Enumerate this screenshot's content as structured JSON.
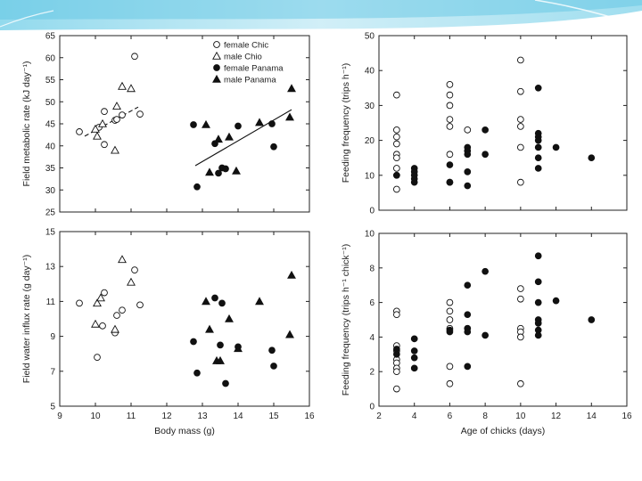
{
  "chart_data": [
    {
      "type": "scatter",
      "id": "top-left",
      "xlim": [
        9,
        16
      ],
      "ylim": [
        25,
        65
      ],
      "yticks": [
        25,
        30,
        35,
        40,
        45,
        50,
        55,
        60,
        65
      ],
      "xticks": [
        9,
        10,
        11,
        12,
        13,
        14,
        15,
        16
      ],
      "show_xticklabels": false,
      "xlabel": "",
      "ylabel": "Field metabolic rate (kJ day⁻¹)",
      "legend": {
        "position": "top-right",
        "entries": [
          {
            "label": "female Chic",
            "marker": "circle",
            "filled": false
          },
          {
            "label": "male Chio",
            "marker": "triangle",
            "filled": false
          },
          {
            "label": "female Panama",
            "marker": "circle",
            "filled": true
          },
          {
            "label": "male Panama",
            "marker": "triangle",
            "filled": true
          }
        ]
      },
      "series": [
        {
          "name": "female Chic",
          "marker": "circle",
          "filled": false,
          "points": [
            [
              9.55,
              43.2
            ],
            [
              10.1,
              44.2
            ],
            [
              10.25,
              47.8
            ],
            [
              10.25,
              40.3
            ],
            [
              10.55,
              45.8
            ],
            [
              10.6,
              46.0
            ],
            [
              10.75,
              47.0
            ],
            [
              11.1,
              60.3
            ],
            [
              11.25,
              47.2
            ]
          ]
        },
        {
          "name": "male Chio",
          "marker": "triangle",
          "filled": false,
          "points": [
            [
              10.0,
              43.8
            ],
            [
              10.05,
              42.2
            ],
            [
              10.2,
              45.0
            ],
            [
              10.55,
              39.0
            ],
            [
              10.6,
              49.0
            ],
            [
              10.75,
              53.5
            ],
            [
              11.0,
              53.0
            ]
          ]
        },
        {
          "name": "female Panama",
          "marker": "circle",
          "filled": true,
          "points": [
            [
              12.75,
              44.8
            ],
            [
              12.85,
              30.7
            ],
            [
              13.35,
              40.5
            ],
            [
              13.45,
              33.8
            ],
            [
              13.55,
              35.0
            ],
            [
              13.65,
              34.8
            ],
            [
              14.0,
              44.5
            ],
            [
              14.95,
              45.0
            ],
            [
              15.0,
              39.8
            ]
          ]
        },
        {
          "name": "male Panama",
          "marker": "triangle",
          "filled": true,
          "points": [
            [
              13.1,
              44.8
            ],
            [
              13.2,
              34.0
            ],
            [
              13.45,
              41.5
            ],
            [
              13.75,
              42.0
            ],
            [
              13.95,
              34.3
            ],
            [
              14.6,
              45.3
            ],
            [
              15.45,
              46.5
            ],
            [
              15.5,
              53.0
            ]
          ]
        }
      ],
      "fit_lines": [
        {
          "name": "Chio fit",
          "style": "dashed",
          "from": [
            9.7,
            42.2
          ],
          "to": [
            11.2,
            48.8
          ]
        },
        {
          "name": "Panama fit",
          "style": "solid",
          "from": [
            12.8,
            35.5
          ],
          "to": [
            15.5,
            48.2
          ]
        }
      ]
    },
    {
      "type": "scatter",
      "id": "bottom-left",
      "xlim": [
        9,
        16
      ],
      "ylim": [
        5,
        15
      ],
      "yticks": [
        5,
        7,
        9,
        11,
        13,
        15
      ],
      "xticks": [
        9,
        10,
        11,
        12,
        13,
        14,
        15,
        16
      ],
      "show_xticklabels": true,
      "xlabel": "Body mass (g)",
      "ylabel": "Field water influx rate (g day⁻¹)",
      "series": [
        {
          "name": "female Chic",
          "marker": "circle",
          "filled": false,
          "points": [
            [
              9.55,
              10.9
            ],
            [
              10.05,
              7.8
            ],
            [
              10.2,
              9.6
            ],
            [
              10.25,
              11.5
            ],
            [
              10.55,
              9.2
            ],
            [
              10.6,
              10.2
            ],
            [
              10.75,
              10.5
            ],
            [
              11.1,
              12.8
            ],
            [
              11.25,
              10.8
            ]
          ]
        },
        {
          "name": "male Chio",
          "marker": "triangle",
          "filled": false,
          "points": [
            [
              10.0,
              9.7
            ],
            [
              10.05,
              10.9
            ],
            [
              10.15,
              11.2
            ],
            [
              10.55,
              9.4
            ],
            [
              10.75,
              13.4
            ],
            [
              11.0,
              12.1
            ]
          ]
        },
        {
          "name": "female Panama",
          "marker": "circle",
          "filled": true,
          "points": [
            [
              12.75,
              8.7
            ],
            [
              12.85,
              6.9
            ],
            [
              13.35,
              11.2
            ],
            [
              13.5,
              8.5
            ],
            [
              13.55,
              10.9
            ],
            [
              13.65,
              6.3
            ],
            [
              14.0,
              8.4
            ],
            [
              14.95,
              8.2
            ],
            [
              15.0,
              7.3
            ]
          ]
        },
        {
          "name": "male Panama",
          "marker": "triangle",
          "filled": true,
          "points": [
            [
              13.1,
              11.0
            ],
            [
              13.2,
              9.4
            ],
            [
              13.4,
              7.6
            ],
            [
              13.5,
              7.6
            ],
            [
              13.75,
              10.0
            ],
            [
              14.0,
              8.3
            ],
            [
              14.6,
              11.0
            ],
            [
              15.45,
              9.1
            ],
            [
              15.5,
              12.5
            ]
          ]
        }
      ]
    },
    {
      "type": "scatter",
      "id": "top-right",
      "xlim": [
        2,
        16
      ],
      "ylim": [
        0,
        50
      ],
      "yticks": [
        0,
        10,
        20,
        30,
        40,
        50
      ],
      "xticks": [
        2,
        4,
        6,
        8,
        10,
        12,
        14,
        16
      ],
      "show_xticklabels": false,
      "xlabel": "",
      "ylabel": "Feeding frequency (trips h⁻¹)",
      "series": [
        {
          "name": "Chio",
          "marker": "circle",
          "filled": false,
          "points": [
            [
              3,
              33
            ],
            [
              3,
              23
            ],
            [
              3,
              21
            ],
            [
              3,
              19
            ],
            [
              3,
              16
            ],
            [
              3,
              15
            ],
            [
              3,
              12
            ],
            [
              3,
              10
            ],
            [
              3,
              6
            ],
            [
              6,
              36
            ],
            [
              6,
              33
            ],
            [
              6,
              30
            ],
            [
              6,
              26
            ],
            [
              6,
              24
            ],
            [
              6,
              16
            ],
            [
              6,
              8
            ],
            [
              7,
              23
            ],
            [
              10,
              43
            ],
            [
              10,
              34
            ],
            [
              10,
              26
            ],
            [
              10,
              24
            ],
            [
              10,
              18
            ],
            [
              10,
              8
            ]
          ]
        },
        {
          "name": "Panama",
          "marker": "circle",
          "filled": true,
          "points": [
            [
              3,
              10
            ],
            [
              4,
              12
            ],
            [
              4,
              11
            ],
            [
              4,
              10
            ],
            [
              4,
              9
            ],
            [
              4,
              8
            ],
            [
              6,
              13
            ],
            [
              6,
              8
            ],
            [
              7,
              18
            ],
            [
              7,
              17
            ],
            [
              7,
              16
            ],
            [
              7,
              11
            ],
            [
              7,
              7
            ],
            [
              8,
              23
            ],
            [
              8,
              16
            ],
            [
              11,
              35
            ],
            [
              11,
              22
            ],
            [
              11,
              21
            ],
            [
              11,
              20
            ],
            [
              11,
              18
            ],
            [
              11,
              15
            ],
            [
              11,
              12
            ],
            [
              12,
              18
            ],
            [
              14,
              15
            ]
          ]
        }
      ]
    },
    {
      "type": "scatter",
      "id": "bottom-right",
      "xlim": [
        2,
        16
      ],
      "ylim": [
        0,
        10
      ],
      "yticks": [
        0,
        2,
        4,
        6,
        8,
        10
      ],
      "xticks": [
        2,
        4,
        6,
        8,
        10,
        12,
        14,
        16
      ],
      "show_xticklabels": true,
      "xlabel": "Age of chicks (days)",
      "ylabel": "Feeding frequency (trips h⁻¹ chick⁻¹)",
      "series": [
        {
          "name": "Chio",
          "marker": "circle",
          "filled": false,
          "points": [
            [
              3,
              5.5
            ],
            [
              3,
              5.3
            ],
            [
              3,
              3.5
            ],
            [
              3,
              3.2
            ],
            [
              3,
              2.7
            ],
            [
              3,
              2.5
            ],
            [
              3,
              2.2
            ],
            [
              3,
              2.0
            ],
            [
              3,
              1.0
            ],
            [
              6,
              6.0
            ],
            [
              6,
              5.5
            ],
            [
              6,
              5.0
            ],
            [
              6,
              4.5
            ],
            [
              6,
              2.3
            ],
            [
              6,
              1.3
            ],
            [
              7,
              4.5
            ],
            [
              10,
              6.8
            ],
            [
              10,
              6.2
            ],
            [
              10,
              4.5
            ],
            [
              10,
              4.3
            ],
            [
              10,
              4.0
            ],
            [
              10,
              1.3
            ]
          ]
        },
        {
          "name": "Panama",
          "marker": "circle",
          "filled": true,
          "points": [
            [
              3,
              3.3
            ],
            [
              3,
              3.0
            ],
            [
              4,
              3.9
            ],
            [
              4,
              3.2
            ],
            [
              4,
              2.8
            ],
            [
              4,
              2.2
            ],
            [
              6,
              4.4
            ],
            [
              6,
              4.3
            ],
            [
              7,
              7.0
            ],
            [
              7,
              5.3
            ],
            [
              7,
              4.5
            ],
            [
              7,
              4.3
            ],
            [
              7,
              2.3
            ],
            [
              8,
              7.8
            ],
            [
              8,
              4.1
            ],
            [
              11,
              8.7
            ],
            [
              11,
              7.2
            ],
            [
              11,
              6.0
            ],
            [
              11,
              5.0
            ],
            [
              11,
              4.8
            ],
            [
              11,
              4.4
            ],
            [
              11,
              4.1
            ],
            [
              12,
              6.1
            ],
            [
              14,
              5.0
            ]
          ]
        }
      ]
    }
  ]
}
